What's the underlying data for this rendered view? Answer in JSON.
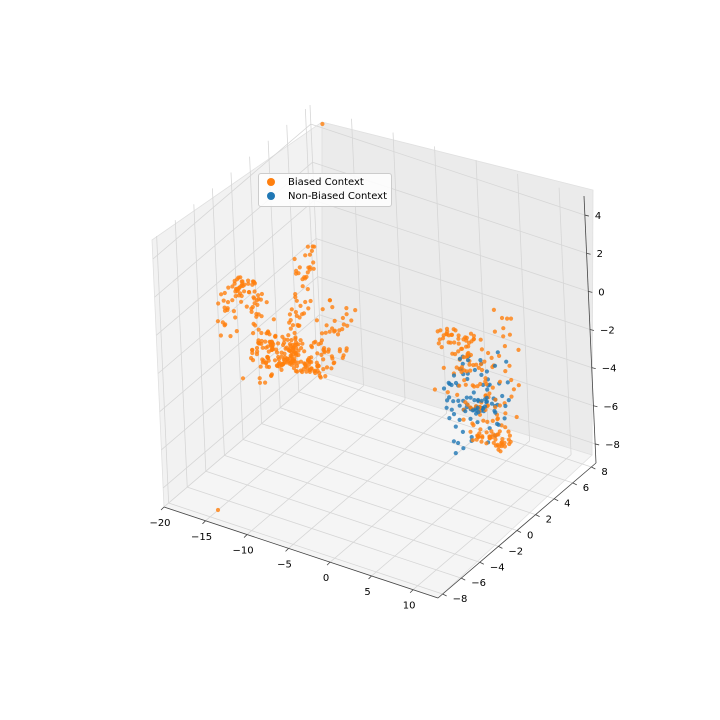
{
  "chart_data": {
    "type": "scatter",
    "projection": "3d",
    "grid": true,
    "legend_position": "upper-left",
    "xlim": [
      -20,
      13
    ],
    "ylim": [
      -8.5,
      8.5
    ],
    "zlim": [
      -9,
      5
    ],
    "x_ticks": [
      "−20",
      "−15",
      "−10",
      "−5",
      "0",
      "5",
      "10"
    ],
    "y_ticks": [
      "−8",
      "−6",
      "−4",
      "−2",
      "0",
      "2",
      "4",
      "6",
      "8"
    ],
    "z_ticks": [
      "−8",
      "−6",
      "−4",
      "−2",
      "0",
      "2",
      "4"
    ],
    "colors": {
      "biased": "#ff7f0e",
      "non_biased": "#1f77b4"
    },
    "series": [
      {
        "name": "Biased Context",
        "color": "#ff7f0e",
        "clusters": [
          {
            "x": [
              -19,
              -17
            ],
            "y": [
              -3,
              6
            ],
            "z": [
              -6,
              0
            ]
          },
          {
            "x": [
              -15,
              -11
            ],
            "y": [
              -4,
              5
            ],
            "z": [
              -5,
              -2
            ]
          },
          {
            "x": [
              6,
              10
            ],
            "y": [
              -2,
              4
            ],
            "z": [
              -6,
              1
            ]
          }
        ],
        "outliers": [
          [
            -18,
            8,
            4.5
          ],
          [
            -14,
            -8,
            -8.5
          ]
        ]
      },
      {
        "name": "Non-Biased Context",
        "color": "#1f77b4",
        "clusters": [
          {
            "x": [
              6,
              10
            ],
            "y": [
              -2,
              3
            ],
            "z": [
              -5,
              -1
            ]
          }
        ]
      }
    ]
  }
}
